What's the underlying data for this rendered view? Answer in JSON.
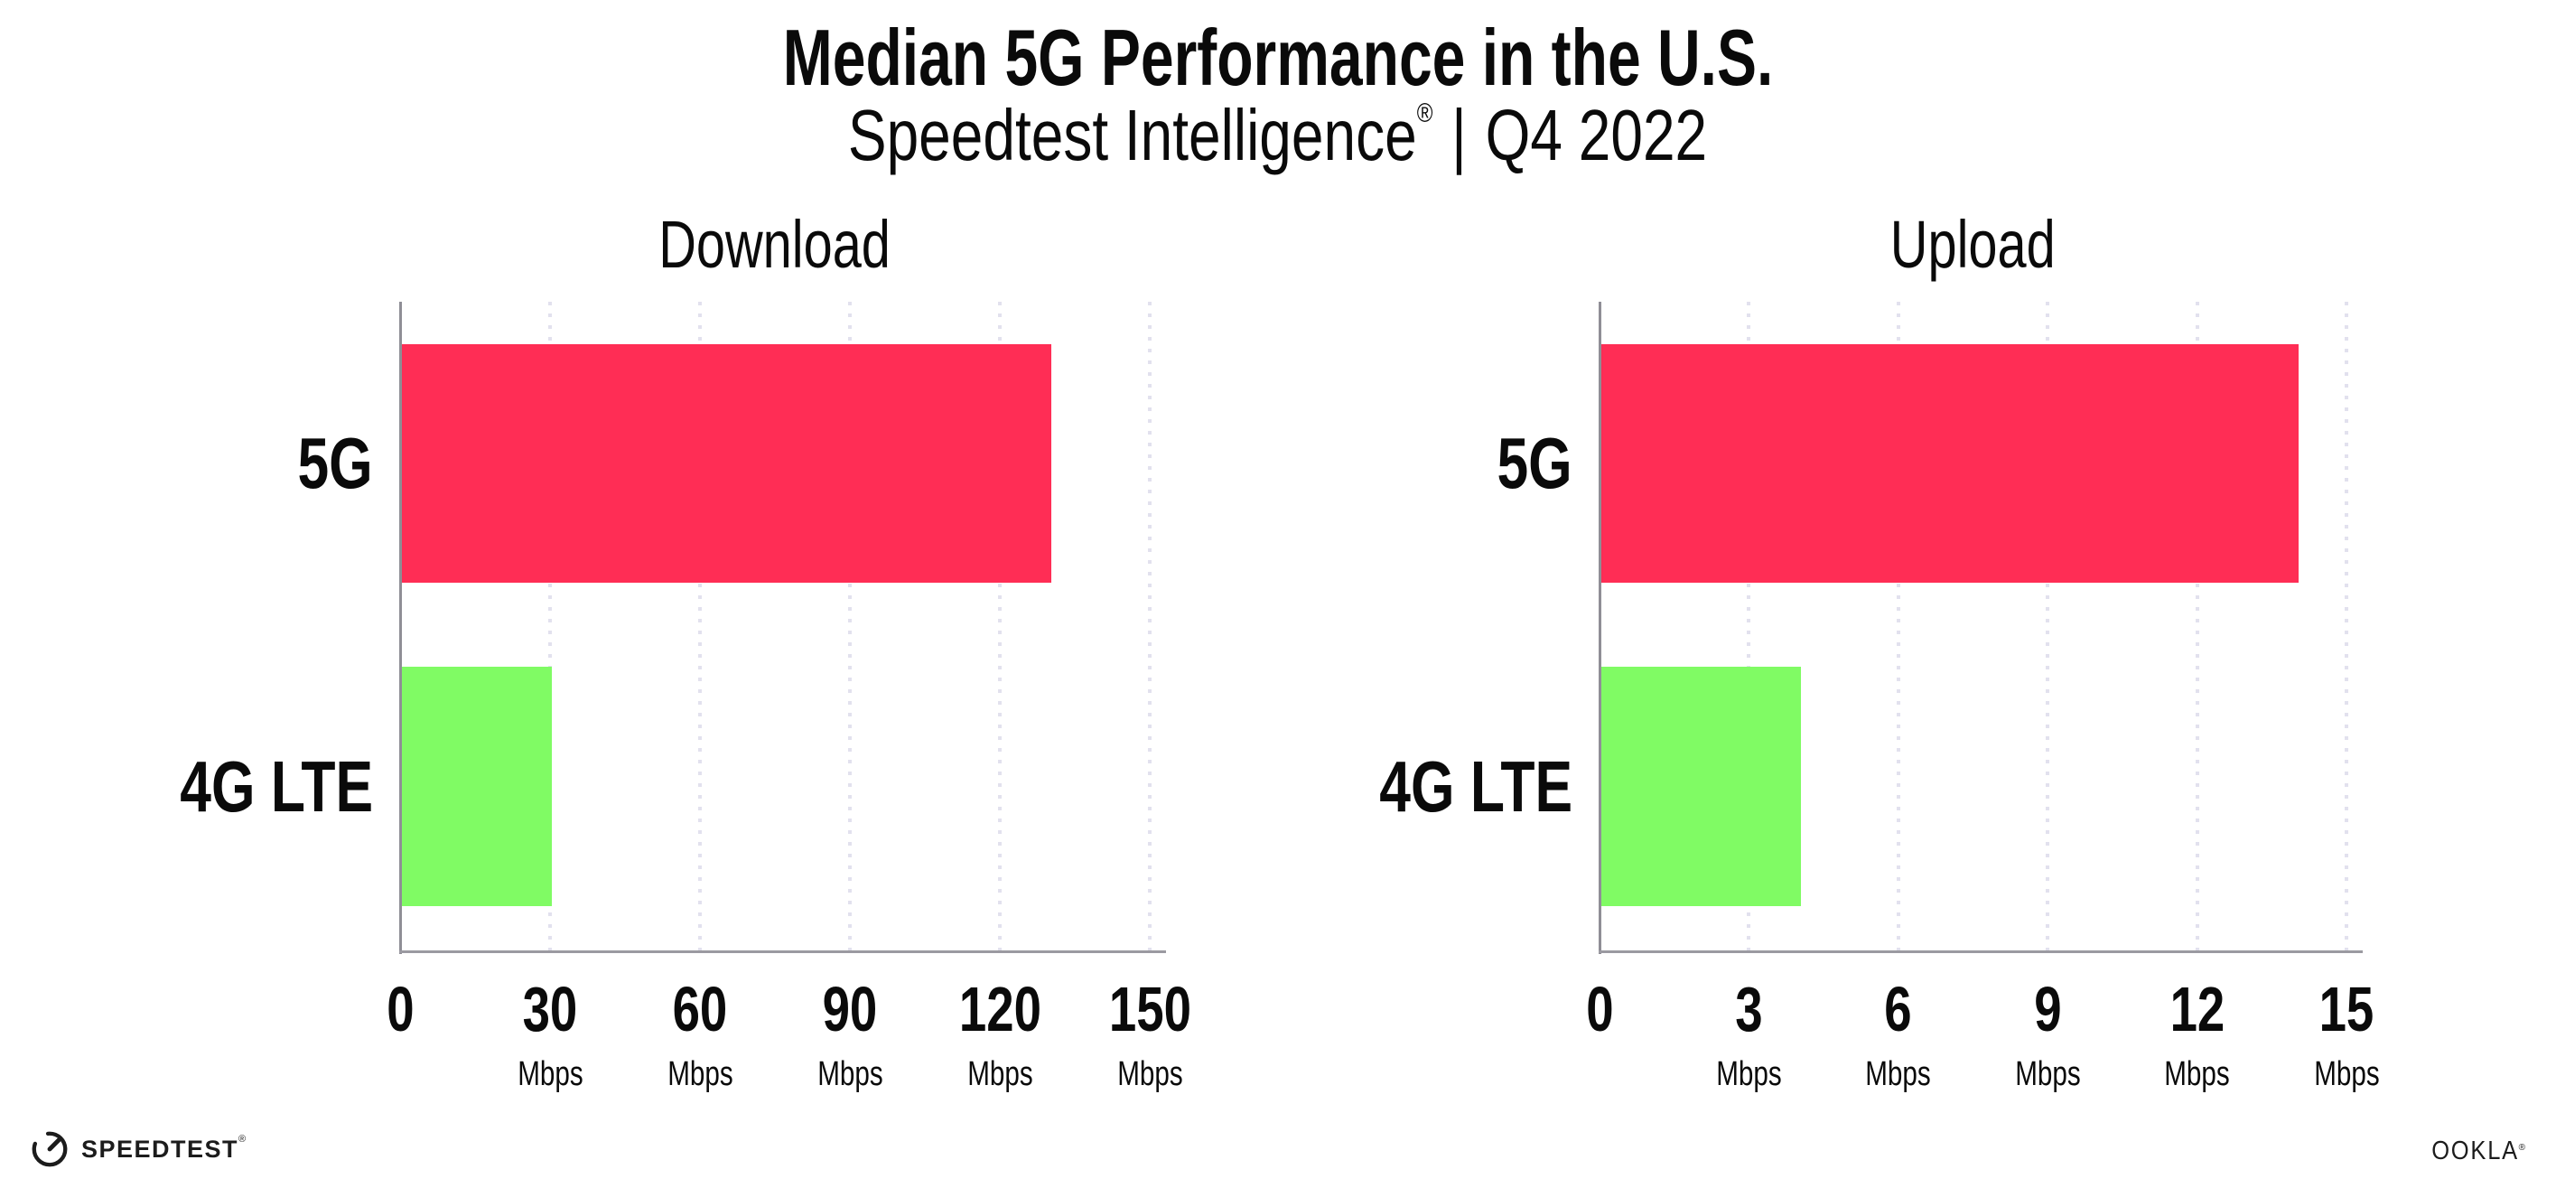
{
  "header": {
    "title": "Median 5G Performance in the U.S.",
    "subtitle": {
      "brand": "Speedtest Intelligence",
      "registered_mark": "®",
      "separator": "|",
      "period": "Q4 2022"
    }
  },
  "chart_data": [
    {
      "type": "bar",
      "orientation": "horizontal",
      "title": "Download",
      "categories": [
        "5G",
        "4G LTE"
      ],
      "values": [
        130,
        30
      ],
      "unit": "Mbps",
      "xlim": [
        0,
        150
      ],
      "xticks": [
        0,
        30,
        60,
        90,
        120,
        150
      ],
      "tick_unit_label": "Mbps",
      "bar_colors": [
        "#ff2d55",
        "#80fb64"
      ],
      "grid": "dotted vertical gridlines at each tick",
      "legend": "none"
    },
    {
      "type": "bar",
      "orientation": "horizontal",
      "title": "Upload",
      "categories": [
        "5G",
        "4G LTE"
      ],
      "values": [
        14,
        4
      ],
      "unit": "Mbps",
      "xlim": [
        0,
        15
      ],
      "xticks": [
        0,
        3,
        6,
        9,
        12,
        15
      ],
      "tick_unit_label": "Mbps",
      "bar_colors": [
        "#ff2d55",
        "#80fb64"
      ],
      "grid": "dotted vertical gridlines at each tick",
      "legend": "none"
    }
  ],
  "footer": {
    "speedtest_logo": {
      "text": "SPEEDTEST",
      "mark": "®",
      "icon": "gauge-icon"
    },
    "ookla_logo": {
      "text": "OOKLA",
      "mark": "®"
    }
  },
  "colors": {
    "bar_5g": "#ff2d55",
    "bar_4g_lte": "#80fb64",
    "gridline": "#e2e1ee",
    "axis": "#98979d",
    "text": "#0a0a0a",
    "background": "#ffffff"
  }
}
